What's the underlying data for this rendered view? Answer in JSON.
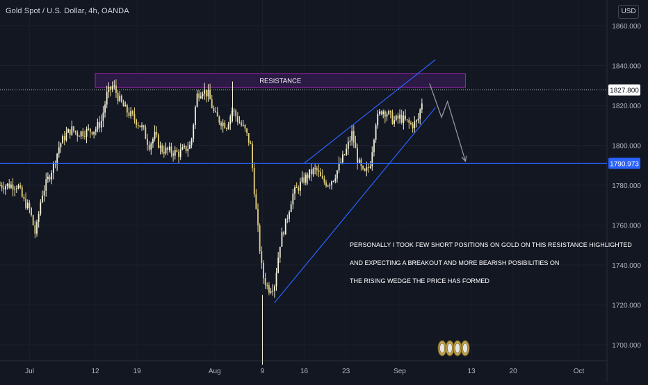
{
  "header": {
    "symbol_title": "Gold Spot / U.S. Dollar, 4h, OANDA",
    "currency": "USD"
  },
  "colors": {
    "background": "#131722",
    "candle_up": "#f5f5dc",
    "candle_down": "#e8d27a",
    "axis_text": "#b2b5be",
    "support_line": "#2962ff",
    "wedge_line": "#2962ff",
    "resistance_fill": "#2a1a44",
    "resistance_border": "#9c27b0",
    "arrow": "#9598a1"
  },
  "chart_data": {
    "type": "candlestick",
    "title": "Gold Spot / U.S. Dollar, 4h, OANDA",
    "ylim": [
      1690,
      1870
    ],
    "y_ticks": [
      1700,
      1720,
      1740,
      1760,
      1780,
      1800,
      1820,
      1840,
      1860
    ],
    "y_tick_labels": [
      "1700.000",
      "1720.000",
      "1740.000",
      "1760.000",
      "1780.000",
      "1800.000",
      "1820.000",
      "1840.000",
      "1860.000"
    ],
    "x_tick_labels": [
      "Jul",
      "12",
      "19",
      "Aug",
      "9",
      "16",
      "23",
      "Sep",
      "13",
      "20",
      "Oct"
    ],
    "x_tick_dates": [
      "2021-07-01",
      "2021-07-12",
      "2021-07-19",
      "2021-08-01",
      "2021-08-09",
      "2021-08-16",
      "2021-08-23",
      "2021-09-01",
      "2021-09-13",
      "2021-09-20",
      "2021-10-01"
    ],
    "price_path": [
      [
        "2021-06-29",
        1780
      ],
      [
        "2021-06-30",
        1772
      ],
      [
        "2021-07-01",
        1768
      ],
      [
        "2021-07-02",
        1755
      ],
      [
        "2021-07-03",
        1775
      ],
      [
        "2021-07-05",
        1790
      ],
      [
        "2021-07-06",
        1800
      ],
      [
        "2021-07-07",
        1805
      ],
      [
        "2021-07-08",
        1808
      ],
      [
        "2021-07-09",
        1806
      ],
      [
        "2021-07-12",
        1808
      ],
      [
        "2021-07-13",
        1812
      ],
      [
        "2021-07-14",
        1826
      ],
      [
        "2021-07-15",
        1830
      ],
      [
        "2021-07-16",
        1823
      ],
      [
        "2021-07-17",
        1818
      ],
      [
        "2021-07-19",
        1812
      ],
      [
        "2021-07-20",
        1808
      ],
      [
        "2021-07-21",
        1800
      ],
      [
        "2021-07-22",
        1805
      ],
      [
        "2021-07-23",
        1798
      ],
      [
        "2021-07-26",
        1796
      ],
      [
        "2021-07-28",
        1800
      ],
      [
        "2021-07-29",
        1825
      ],
      [
        "2021-07-30",
        1828
      ],
      [
        "2021-07-31",
        1825
      ],
      [
        "2021-08-01",
        1815
      ],
      [
        "2021-08-02",
        1812
      ],
      [
        "2021-08-03",
        1810
      ],
      [
        "2021-08-04",
        1818
      ],
      [
        "2021-08-05",
        1812
      ],
      [
        "2021-08-06",
        1808
      ],
      [
        "2021-08-07",
        1800
      ],
      [
        "2021-08-08",
        1765
      ],
      [
        "2021-08-09",
        1735
      ],
      [
        "2021-08-10",
        1728
      ],
      [
        "2021-08-11",
        1730
      ],
      [
        "2021-08-12",
        1752
      ],
      [
        "2021-08-13",
        1762
      ],
      [
        "2021-08-14",
        1775
      ],
      [
        "2021-08-16",
        1783
      ],
      [
        "2021-08-17",
        1786
      ],
      [
        "2021-08-18",
        1788
      ],
      [
        "2021-08-19",
        1782
      ],
      [
        "2021-08-20",
        1781
      ],
      [
        "2021-08-21",
        1784
      ],
      [
        "2021-08-23",
        1797
      ],
      [
        "2021-08-24",
        1806
      ],
      [
        "2021-08-25",
        1792
      ],
      [
        "2021-08-26",
        1785
      ],
      [
        "2021-08-27",
        1790
      ],
      [
        "2021-08-28",
        1812
      ],
      [
        "2021-08-29",
        1818
      ],
      [
        "2021-08-30",
        1816
      ],
      [
        "2021-08-31",
        1812
      ],
      [
        "2021-09-01",
        1814
      ],
      [
        "2021-09-02",
        1812
      ],
      [
        "2021-09-03",
        1810
      ],
      [
        "2021-09-04",
        1812
      ],
      [
        "2021-09-05",
        1826
      ]
    ],
    "current_price": 1827.8,
    "current_price_label": "1827.800",
    "horizontal_support": 1790.973,
    "horizontal_support_label": "1790.973",
    "resistance_zone": {
      "label": "RESISTANCE",
      "from": "2021-07-12",
      "to": "2021-09-12",
      "low": 1829,
      "high": 1836
    },
    "wedge_upper": [
      [
        "2021-08-16",
        1791
      ],
      [
        "2021-09-07",
        1843
      ]
    ],
    "wedge_lower": [
      [
        "2021-08-11",
        1721
      ],
      [
        "2021-09-07",
        1819
      ]
    ],
    "projection_arrow": [
      [
        "2021-09-06",
        1831
      ],
      [
        "2021-09-08",
        1814
      ],
      [
        "2021-09-09",
        1822
      ],
      [
        "2021-09-12",
        1792
      ]
    ],
    "annotation_lines": [
      "PERSONALLY I TOOK FEW SHORT POSITIONS ON GOLD ON THIS RESISTANCE HIGHLIGHTED",
      "AND EXPECTING A BREAKOUT AND MORE BEARISH POSIBILITIES ON",
      "THE RISING WEDGE THE PRICE HAS FORMED"
    ]
  }
}
